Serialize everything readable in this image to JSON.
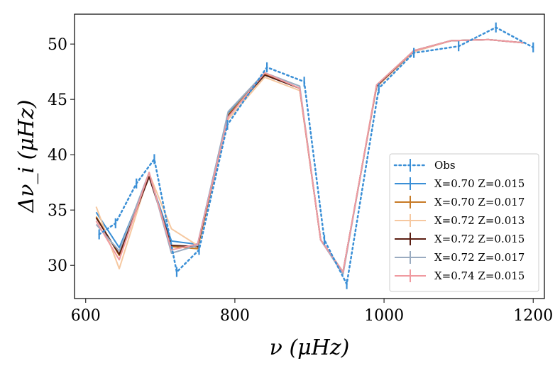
{
  "chart_data": {
    "type": "line",
    "title": "",
    "xlabel": "ν  (μHz)",
    "ylabel": "Δν_i  (μHz)",
    "xlim": [
      585,
      1215
    ],
    "ylim": [
      27.0,
      52.7
    ],
    "xticks": [
      600,
      800,
      1000,
      1200
    ],
    "yticks": [
      30,
      35,
      40,
      45,
      50
    ],
    "grid": false,
    "legend_position": "lower-right",
    "series": [
      {
        "name": "Obs",
        "color": "#3a8fd6",
        "style": "dotted",
        "errorbar": true,
        "x": [
          618,
          640,
          668,
          692,
          722,
          752,
          790,
          843,
          893,
          920,
          950,
          993,
          1040,
          1100,
          1150,
          1200
        ],
        "y": [
          32.8,
          33.8,
          37.4,
          39.6,
          29.4,
          31.4,
          42.7,
          47.9,
          46.6,
          32.3,
          28.3,
          46.0,
          49.2,
          49.8,
          51.5,
          49.7
        ]
      },
      {
        "name": "X=0.70 Z=0.015",
        "color": "#3a8fd6",
        "style": "solid",
        "x": [
          614,
          645,
          685,
          715,
          750,
          791,
          840,
          887,
          915,
          945,
          990,
          1040,
          1090,
          1140,
          1190
        ],
        "y": [
          34.8,
          31.6,
          38.1,
          32.2,
          31.9,
          43.8,
          47.2,
          46.0,
          32.3,
          29.4,
          46.2,
          49.4,
          50.3,
          50.4,
          50.1
        ]
      },
      {
        "name": "X=0.70 Z=0.017",
        "color": "#c77a25",
        "style": "solid",
        "x": [
          614,
          645,
          685,
          715,
          750,
          791,
          840,
          887,
          915,
          945,
          990,
          1040,
          1090,
          1140,
          1190
        ],
        "y": [
          34.4,
          30.9,
          38.2,
          31.7,
          31.5,
          43.6,
          47.3,
          46.0,
          32.3,
          29.3,
          46.3,
          49.4,
          50.3,
          50.4,
          50.1
        ]
      },
      {
        "name": "X=0.72 Z=0.013",
        "color": "#f6c8a0",
        "style": "solid",
        "x": [
          614,
          645,
          685,
          715,
          750,
          791,
          840,
          887,
          915,
          945,
          990,
          1040,
          1090,
          1140,
          1190
        ],
        "y": [
          35.3,
          29.7,
          38.3,
          33.3,
          31.8,
          43.2,
          47.0,
          45.8,
          32.3,
          29.4,
          46.1,
          49.3,
          50.3,
          50.4,
          50.1
        ]
      },
      {
        "name": "X=0.72 Z=0.015",
        "color": "#5a1e12",
        "style": "solid",
        "x": [
          614,
          645,
          685,
          715,
          750,
          791,
          840,
          887,
          915,
          945,
          990,
          1040,
          1090,
          1140,
          1190
        ],
        "y": [
          34.3,
          31.0,
          38.0,
          31.8,
          31.7,
          43.5,
          47.2,
          46.0,
          32.3,
          29.4,
          46.2,
          49.4,
          50.3,
          50.4,
          50.1
        ]
      },
      {
        "name": "X=0.72 Z=0.017",
        "color": "#9aabc0",
        "style": "solid",
        "x": [
          614,
          645,
          685,
          715,
          750,
          791,
          840,
          887,
          915,
          945,
          990,
          1040,
          1090,
          1140,
          1190
        ],
        "y": [
          33.7,
          31.3,
          38.4,
          31.1,
          31.8,
          43.9,
          47.4,
          46.2,
          32.3,
          29.2,
          46.3,
          49.4,
          50.3,
          50.4,
          50.1
        ]
      },
      {
        "name": "X=0.74 Z=0.015",
        "color": "#f09aa0",
        "style": "solid",
        "x": [
          614,
          645,
          685,
          715,
          750,
          791,
          840,
          887,
          915,
          945,
          990,
          1040,
          1090,
          1140,
          1190
        ],
        "y": [
          34.0,
          30.5,
          38.4,
          31.4,
          31.9,
          43.4,
          47.4,
          46.0,
          32.3,
          29.4,
          46.3,
          49.4,
          50.3,
          50.4,
          50.1
        ]
      }
    ]
  }
}
